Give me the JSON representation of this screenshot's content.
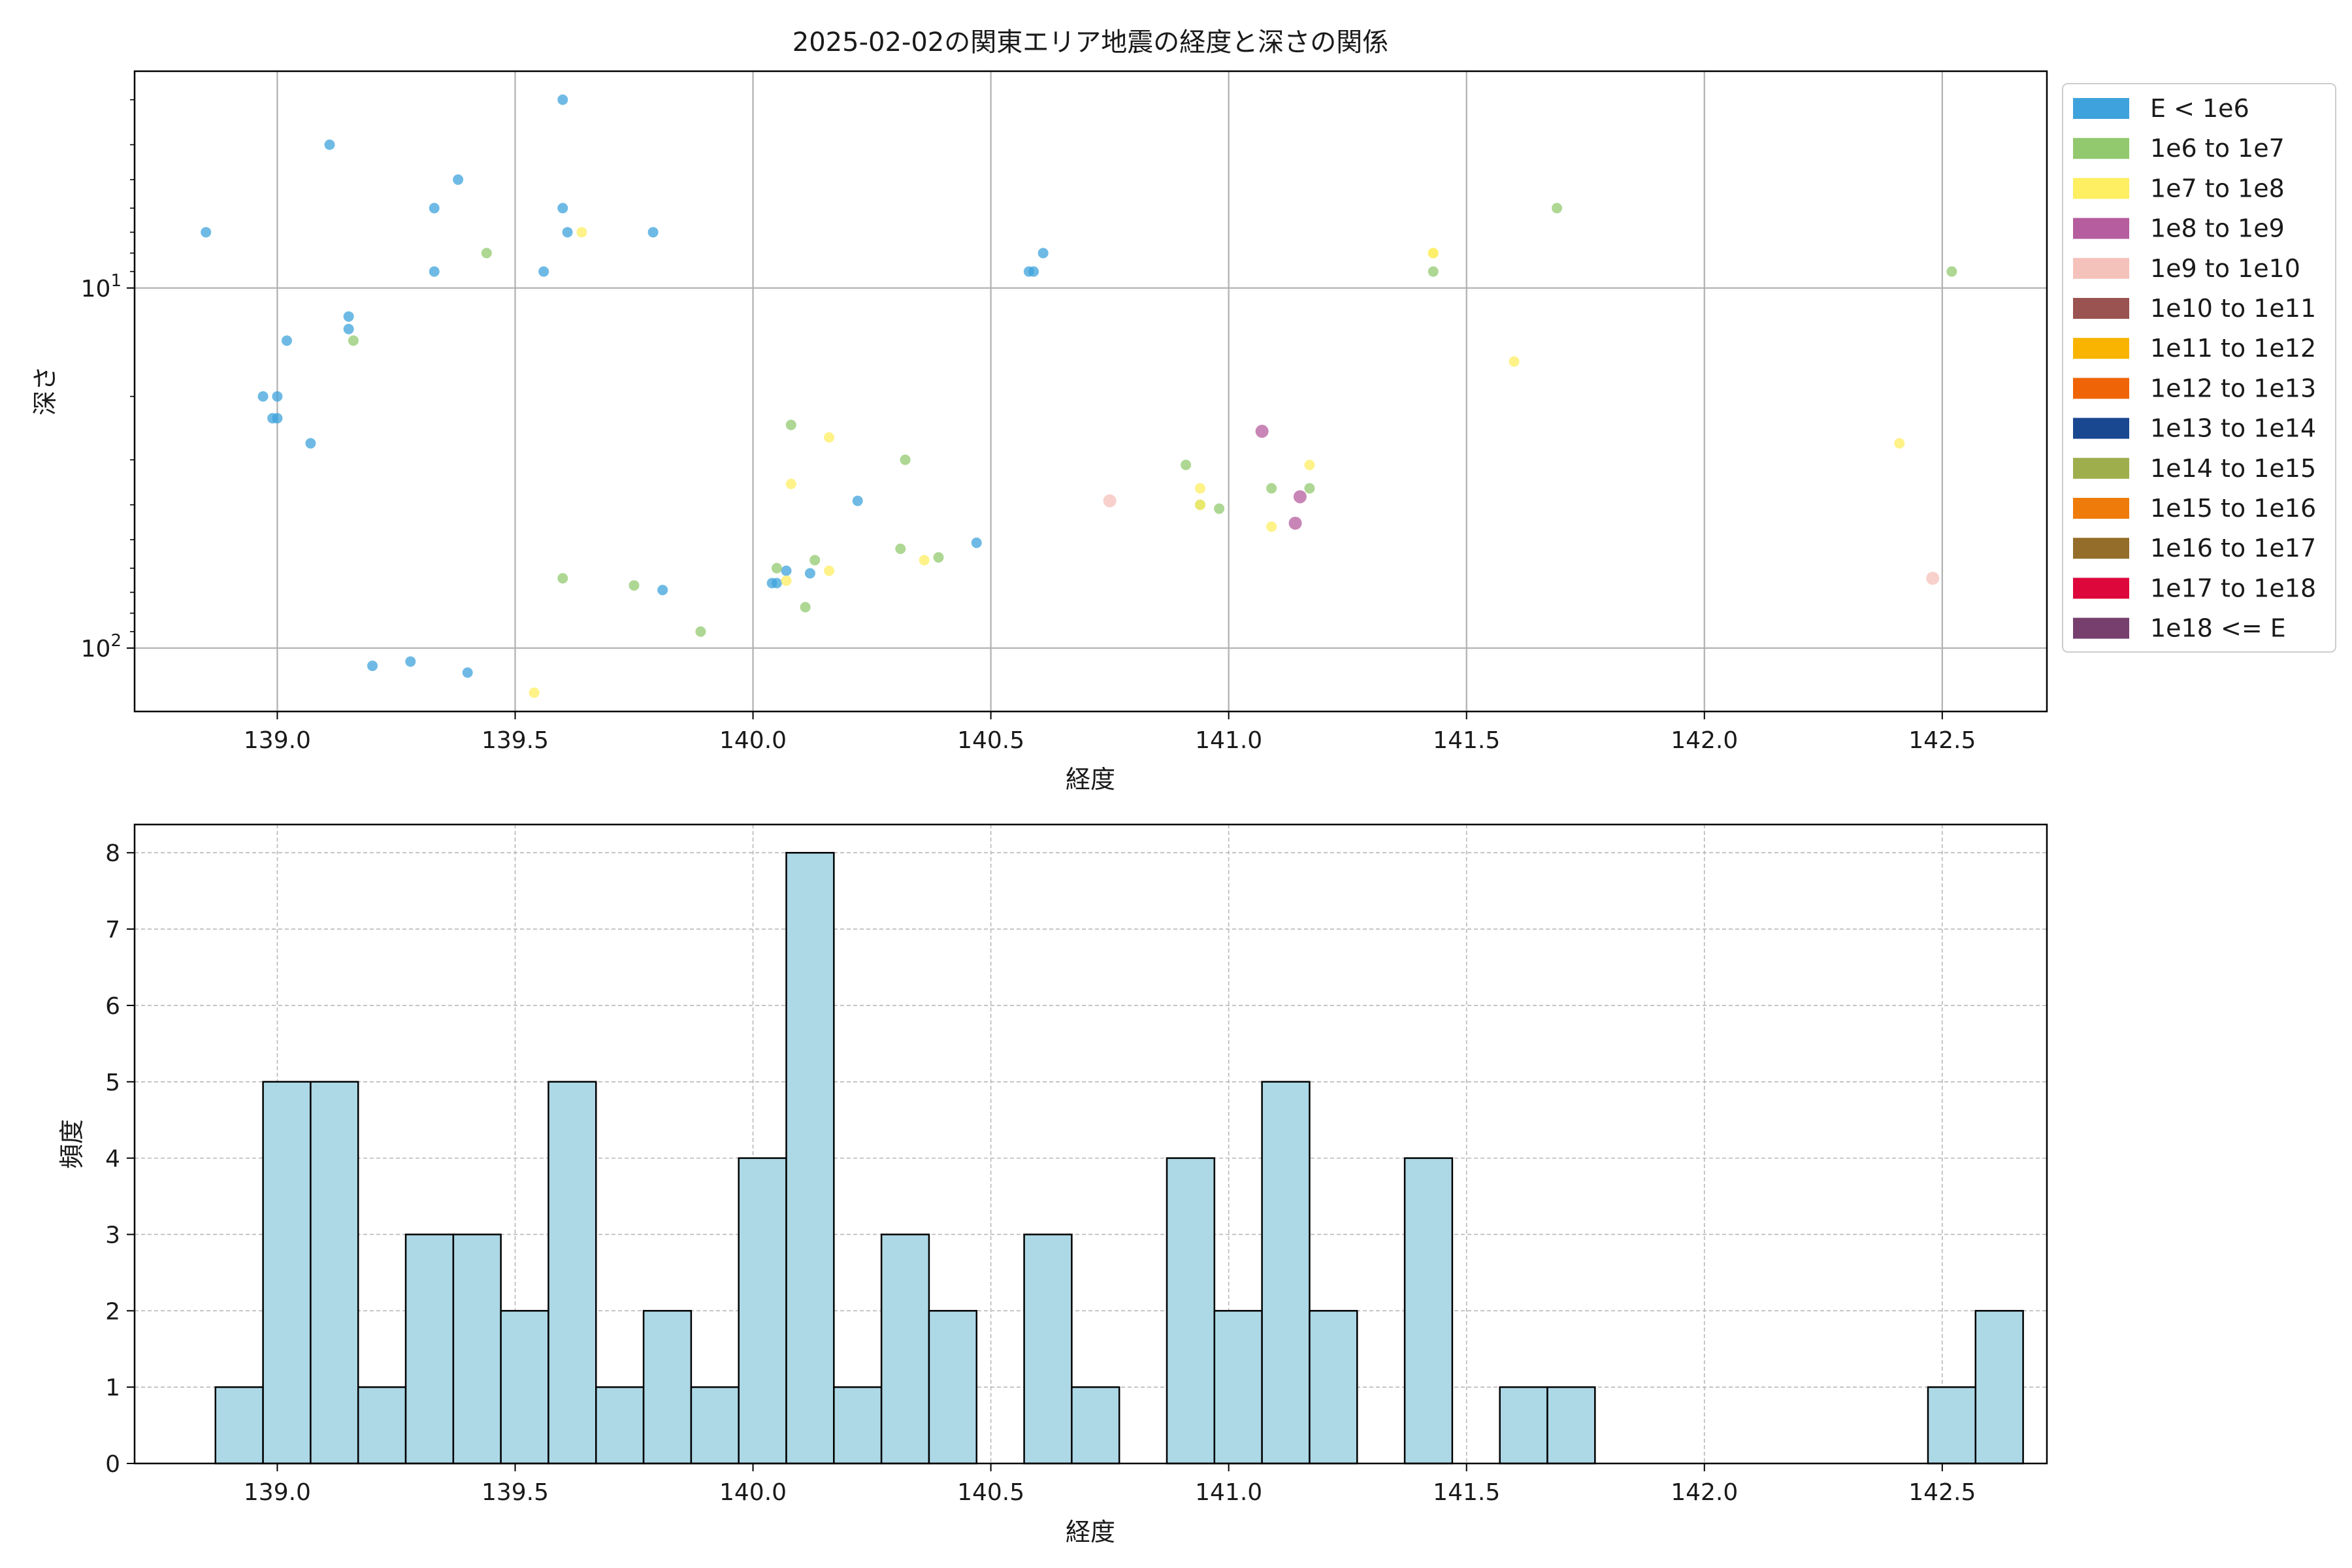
{
  "chart_data": [
    {
      "type": "scatter",
      "title": "2025-02-02の関東エリア地震の経度と深さの関係",
      "xlabel": "経度",
      "ylabel": "深さ",
      "xlim": [
        138.7,
        142.72
      ],
      "ylim": [
        150,
        2.5
      ],
      "yscale": "log",
      "y_inverted": true,
      "x_ticks": [
        139.0,
        139.5,
        140.0,
        140.5,
        141.0,
        141.5,
        142.0,
        142.5
      ],
      "x_tick_labels": [
        "139.0",
        "139.5",
        "140.0",
        "140.5",
        "141.0",
        "141.5",
        "142.0",
        "142.5"
      ],
      "y_major_ticks": [
        10,
        100
      ],
      "y_tick_labels": [
        {
          "base": "10",
          "exp": "1"
        },
        {
          "base": "10",
          "exp": "2"
        }
      ],
      "y_minor_ticks": [
        3,
        4,
        5,
        6,
        7,
        8,
        9,
        20,
        30,
        40,
        50,
        60,
        70,
        80,
        90
      ],
      "grid": true,
      "legend_position": "outside-right",
      "legend": [
        {
          "label": "E < 1e6",
          "color": "#3ea3dc"
        },
        {
          "label": "1e6 to 1e7",
          "color": "#92c96f"
        },
        {
          "label": "1e7 to 1e8",
          "color": "#fdee62"
        },
        {
          "label": "1e8 to 1e9",
          "color": "#b55d9e"
        },
        {
          "label": "1e9 to 1e10",
          "color": "#f5c2bb"
        },
        {
          "label": "1e10 to 1e11",
          "color": "#9a5351"
        },
        {
          "label": "1e11 to 1e12",
          "color": "#f8b400"
        },
        {
          "label": "1e12 to 1e13",
          "color": "#ef6407"
        },
        {
          "label": "1e13 to 1e14",
          "color": "#1a4890"
        },
        {
          "label": "1e14 to 1e15",
          "color": "#9fae4d"
        },
        {
          "label": "1e15 to 1e16",
          "color": "#ef7b0a"
        },
        {
          "label": "1e16 to 1e17",
          "color": "#956d2a"
        },
        {
          "label": "1e17 to 1e18",
          "color": "#dd073c"
        },
        {
          "label": "1e18 <= E",
          "color": "#773f6e"
        }
      ],
      "series": [
        {
          "class": 0,
          "points": [
            [
              138.85,
              7
            ],
            [
              139.11,
              4
            ],
            [
              139.02,
              14
            ],
            [
              138.97,
              20
            ],
            [
              139.0,
              20
            ],
            [
              138.99,
              23
            ],
            [
              139.0,
              23
            ],
            [
              139.07,
              27
            ],
            [
              139.15,
              12
            ],
            [
              139.15,
              13
            ],
            [
              139.33,
              6
            ],
            [
              139.33,
              9
            ],
            [
              139.38,
              5
            ],
            [
              139.6,
              3
            ],
            [
              139.6,
              6
            ],
            [
              139.61,
              7
            ],
            [
              139.56,
              9
            ],
            [
              139.79,
              7
            ],
            [
              139.2,
              112
            ],
            [
              139.28,
              109
            ],
            [
              139.4,
              117
            ],
            [
              139.81,
              69
            ],
            [
              140.04,
              66
            ],
            [
              140.05,
              66
            ],
            [
              140.07,
              61
            ],
            [
              140.12,
              62
            ],
            [
              140.22,
              39
            ],
            [
              140.47,
              51
            ],
            [
              140.58,
              9
            ],
            [
              140.59,
              9
            ],
            [
              140.61,
              8
            ]
          ]
        },
        {
          "class": 1,
          "points": [
            [
              139.44,
              8
            ],
            [
              139.16,
              14
            ],
            [
              139.6,
              64
            ],
            [
              139.75,
              67
            ],
            [
              139.89,
              90
            ],
            [
              140.05,
              60
            ],
            [
              140.08,
              24
            ],
            [
              140.11,
              77
            ],
            [
              140.13,
              57
            ],
            [
              140.31,
              53
            ],
            [
              140.32,
              30
            ],
            [
              140.39,
              56
            ],
            [
              140.91,
              31
            ],
            [
              140.94,
              40
            ],
            [
              140.98,
              41
            ],
            [
              141.09,
              36
            ],
            [
              141.17,
              36
            ],
            [
              141.43,
              9
            ],
            [
              141.69,
              6
            ],
            [
              142.52,
              9
            ]
          ]
        },
        {
          "class": 2,
          "points": [
            [
              139.64,
              7
            ],
            [
              139.54,
              133
            ],
            [
              140.07,
              65
            ],
            [
              140.08,
              35
            ],
            [
              140.16,
              26
            ],
            [
              140.16,
              61
            ],
            [
              140.36,
              57
            ],
            [
              140.94,
              36
            ],
            [
              140.94,
              40
            ],
            [
              141.09,
              46
            ],
            [
              141.17,
              31
            ],
            [
              141.43,
              8
            ],
            [
              141.43,
              8
            ],
            [
              141.6,
              16
            ],
            [
              142.41,
              27
            ]
          ]
        },
        {
          "class": 3,
          "points": [
            [
              141.07,
              25
            ],
            [
              141.15,
              38
            ],
            [
              141.14,
              45
            ]
          ]
        },
        {
          "class": 4,
          "points": [
            [
              140.75,
              39
            ],
            [
              142.48,
              64
            ]
          ]
        }
      ]
    },
    {
      "type": "bar",
      "subtype": "histogram",
      "xlabel": "経度",
      "ylabel": "頻度",
      "xlim": [
        138.7,
        142.72
      ],
      "ylim": [
        0,
        8.37
      ],
      "x_ticks": [
        139.0,
        139.5,
        140.0,
        140.5,
        141.0,
        141.5,
        142.0,
        142.5
      ],
      "x_tick_labels": [
        "139.0",
        "139.5",
        "140.0",
        "140.5",
        "141.0",
        "141.5",
        "142.0",
        "142.5"
      ],
      "y_ticks": [
        0,
        1,
        2,
        3,
        4,
        5,
        6,
        7,
        8
      ],
      "y_tick_labels": [
        "0",
        "1",
        "2",
        "3",
        "4",
        "5",
        "6",
        "7",
        "8"
      ],
      "grid": true,
      "bar_color": "#add8e6",
      "bin_start": 138.87,
      "bin_width": 0.1,
      "counts": [
        1,
        5,
        5,
        1,
        3,
        3,
        2,
        5,
        1,
        2,
        1,
        4,
        8,
        1,
        3,
        2,
        0,
        3,
        1,
        0,
        4,
        2,
        5,
        2,
        0,
        4,
        0,
        1,
        1,
        0,
        0,
        0,
        0,
        0,
        0,
        0,
        1,
        2
      ]
    }
  ]
}
